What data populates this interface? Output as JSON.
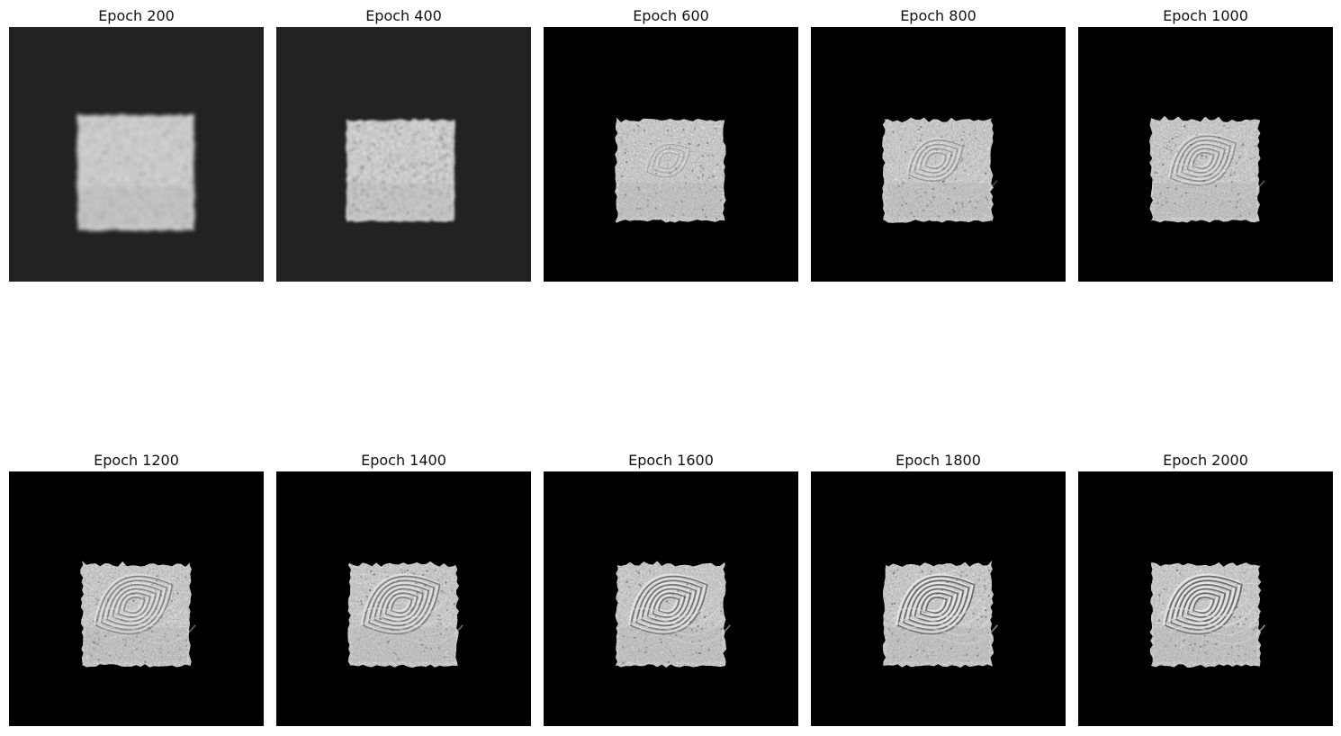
{
  "figure": {
    "panels": [
      {
        "title": "Epoch 200",
        "background": "#222222",
        "stage": 0
      },
      {
        "title": "Epoch 400",
        "background": "#222222",
        "stage": 1
      },
      {
        "title": "Epoch 600",
        "background": "#000000",
        "stage": 2
      },
      {
        "title": "Epoch 800",
        "background": "#000000",
        "stage": 3
      },
      {
        "title": "Epoch 1000",
        "background": "#000000",
        "stage": 4
      },
      {
        "title": "Epoch 1200",
        "background": "#000000",
        "stage": 5
      },
      {
        "title": "Epoch 1400",
        "background": "#000000",
        "stage": 6
      },
      {
        "title": "Epoch 1600",
        "background": "#000000",
        "stage": 7
      },
      {
        "title": "Epoch 1800",
        "background": "#000000",
        "stage": 8
      },
      {
        "title": "Epoch 2000",
        "background": "#000000",
        "stage": 9
      }
    ]
  }
}
